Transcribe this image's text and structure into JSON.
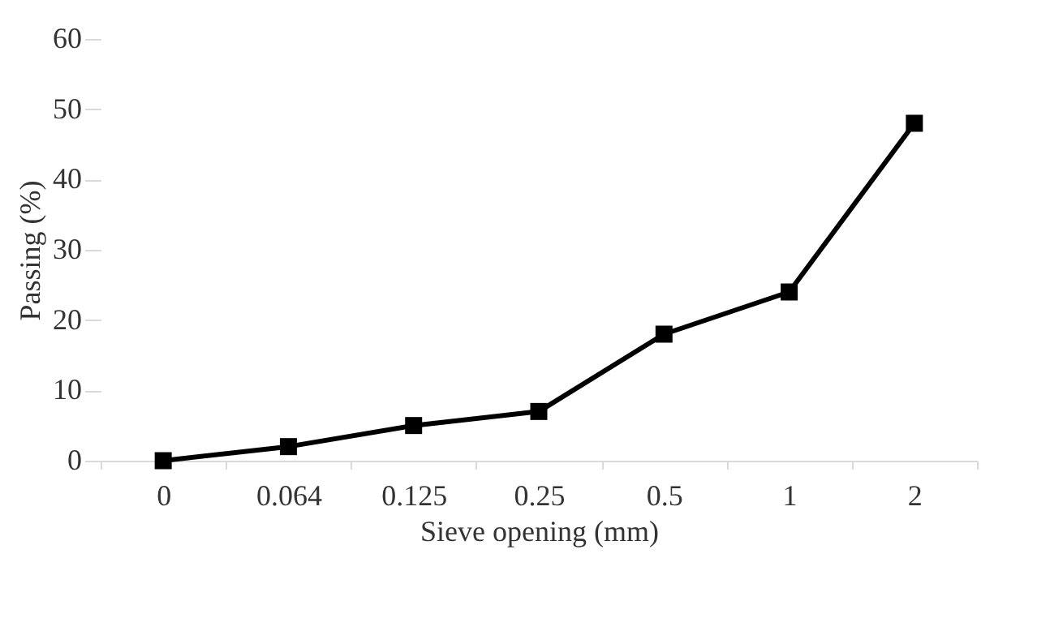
{
  "chart_data": {
    "type": "line",
    "xlabel": "Sieve opening (mm)",
    "ylabel": "Passing (%)",
    "categories": [
      "0",
      "0.064",
      "0.125",
      "0.25",
      "0.5",
      "1",
      "2"
    ],
    "series": [
      {
        "color": "#000000",
        "values": [
          0,
          2,
          5,
          7,
          18,
          24,
          48
        ]
      }
    ],
    "ylim": [
      0,
      60
    ],
    "yticks": [
      0,
      10,
      20,
      30,
      40,
      50,
      60
    ],
    "grid": false,
    "legend": false,
    "marker": "square",
    "line_style": "solid"
  }
}
